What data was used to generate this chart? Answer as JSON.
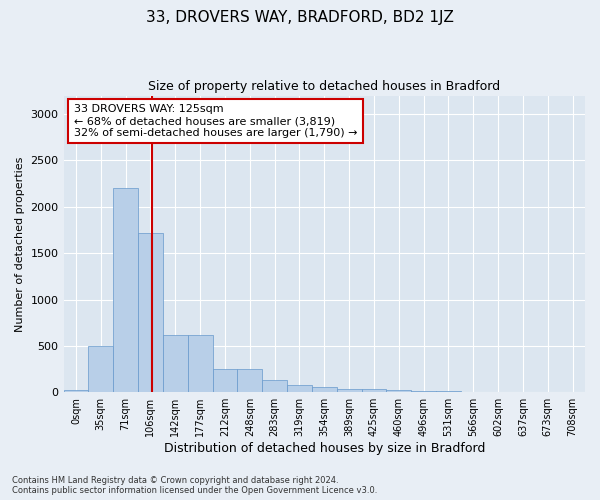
{
  "title": "33, DROVERS WAY, BRADFORD, BD2 1JZ",
  "subtitle": "Size of property relative to detached houses in Bradford",
  "xlabel": "Distribution of detached houses by size in Bradford",
  "ylabel": "Number of detached properties",
  "bin_labels": [
    "0sqm",
    "35sqm",
    "71sqm",
    "106sqm",
    "142sqm",
    "177sqm",
    "212sqm",
    "248sqm",
    "283sqm",
    "319sqm",
    "354sqm",
    "389sqm",
    "425sqm",
    "460sqm",
    "496sqm",
    "531sqm",
    "566sqm",
    "602sqm",
    "637sqm",
    "673sqm",
    "708sqm"
  ],
  "bar_values": [
    20,
    500,
    2200,
    1720,
    620,
    620,
    255,
    255,
    130,
    80,
    55,
    40,
    30,
    25,
    15,
    8,
    5,
    3,
    2,
    1,
    0
  ],
  "bar_color": "#b8cfe8",
  "bar_edge_color": "#6699cc",
  "vline_bin": 3.55,
  "vline_color": "#cc0000",
  "annotation_text": "33 DROVERS WAY: 125sqm\n← 68% of detached houses are smaller (3,819)\n32% of semi-detached houses are larger (1,790) →",
  "annotation_box_color": "white",
  "annotation_box_edge": "#cc0000",
  "ylim": [
    0,
    3200
  ],
  "yticks": [
    0,
    500,
    1000,
    1500,
    2000,
    2500,
    3000
  ],
  "footer": "Contains HM Land Registry data © Crown copyright and database right 2024.\nContains public sector information licensed under the Open Government Licence v3.0.",
  "bg_color": "#e8eef5",
  "plot_bg_color": "#dce6f0"
}
